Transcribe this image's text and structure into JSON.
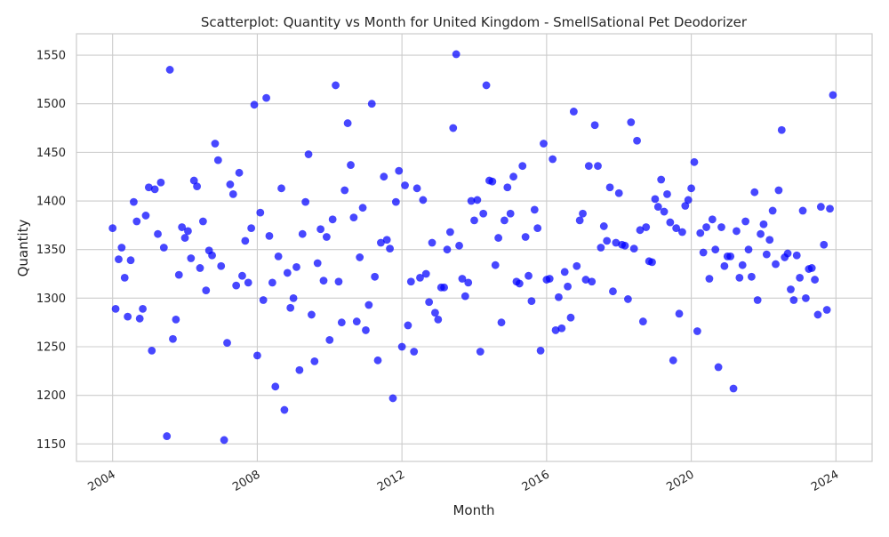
{
  "chart_data": {
    "type": "scatter",
    "title": "Scatterplot: Quantity vs Month for United Kingdom - SmellSational Pet Deodorizer",
    "xlabel": "Month",
    "ylabel": "Quantity",
    "x_tick_labels": [
      "2004",
      "2008",
      "2012",
      "2016",
      "2020",
      "2024"
    ],
    "y_tick_labels": [
      "1150",
      "1200",
      "1250",
      "1300",
      "1350",
      "1400",
      "1450",
      "1500",
      "1550"
    ],
    "xlim": [
      "2003-01",
      "2025-01"
    ],
    "ylim": [
      1132,
      1572
    ],
    "grid": true,
    "marker_color": "#0000ff",
    "series": [
      {
        "x": [
          "2004-01",
          "2004-02",
          "2004-03",
          "2004-04",
          "2004-05",
          "2004-06",
          "2004-07",
          "2004-08",
          "2004-09",
          "2004-10",
          "2004-11",
          "2004-12",
          "2005-01",
          "2005-02",
          "2005-03",
          "2005-04",
          "2005-05",
          "2005-06",
          "2005-07",
          "2005-08",
          "2005-09",
          "2005-10",
          "2005-11",
          "2005-12",
          "2006-01",
          "2006-02",
          "2006-03",
          "2006-04",
          "2006-05",
          "2006-06",
          "2006-07",
          "2006-08",
          "2006-09",
          "2006-10",
          "2006-11",
          "2006-12",
          "2007-01",
          "2007-02",
          "2007-03",
          "2007-04",
          "2007-05",
          "2007-06",
          "2007-07",
          "2007-08",
          "2007-09",
          "2007-10",
          "2007-11",
          "2007-12",
          "2008-01",
          "2008-02",
          "2008-03",
          "2008-04",
          "2008-05",
          "2008-06",
          "2008-07",
          "2008-08",
          "2008-09",
          "2008-10",
          "2008-11",
          "2008-12",
          "2009-01",
          "2009-02",
          "2009-03",
          "2009-04",
          "2009-05",
          "2009-06",
          "2009-07",
          "2009-08",
          "2009-09",
          "2009-10",
          "2009-11",
          "2009-12",
          "2010-01",
          "2010-02",
          "2010-03",
          "2010-04",
          "2010-05",
          "2010-06",
          "2010-07",
          "2010-08",
          "2010-09",
          "2010-10",
          "2010-11",
          "2010-12",
          "2011-01",
          "2011-02",
          "2011-03",
          "2011-04",
          "2011-05",
          "2011-06",
          "2011-07",
          "2011-08",
          "2011-09",
          "2011-10",
          "2011-11",
          "2011-12",
          "2012-01",
          "2012-02",
          "2012-03",
          "2012-04",
          "2012-05",
          "2012-06",
          "2012-07",
          "2012-08",
          "2012-09",
          "2012-10",
          "2012-11",
          "2012-12",
          "2013-01",
          "2013-02",
          "2013-03",
          "2013-04",
          "2013-05",
          "2013-06",
          "2013-07",
          "2013-08",
          "2013-09",
          "2013-10",
          "2013-11",
          "2013-12",
          "2014-01",
          "2014-02",
          "2014-03",
          "2014-04",
          "2014-05",
          "2014-06",
          "2014-07",
          "2014-08",
          "2014-09",
          "2014-10",
          "2014-11",
          "2014-12",
          "2015-01",
          "2015-02",
          "2015-03",
          "2015-04",
          "2015-05",
          "2015-06",
          "2015-07",
          "2015-08",
          "2015-09",
          "2015-10",
          "2015-11",
          "2015-12",
          "2016-01",
          "2016-02",
          "2016-03",
          "2016-04",
          "2016-05",
          "2016-06",
          "2016-07",
          "2016-08",
          "2016-09",
          "2016-10",
          "2016-11",
          "2016-12",
          "2017-01",
          "2017-02",
          "2017-03",
          "2017-04",
          "2017-05",
          "2017-06",
          "2017-07",
          "2017-08",
          "2017-09",
          "2017-10",
          "2017-11",
          "2017-12",
          "2018-01",
          "2018-02",
          "2018-03",
          "2018-04",
          "2018-05",
          "2018-06",
          "2018-07",
          "2018-08",
          "2018-09",
          "2018-10",
          "2018-11",
          "2018-12",
          "2019-01",
          "2019-02",
          "2019-03",
          "2019-04",
          "2019-05",
          "2019-06",
          "2019-07",
          "2019-08",
          "2019-09",
          "2019-10",
          "2019-11",
          "2019-12",
          "2020-01",
          "2020-02",
          "2020-03",
          "2020-04",
          "2020-05",
          "2020-06",
          "2020-07",
          "2020-08",
          "2020-09",
          "2020-10",
          "2020-11",
          "2020-12",
          "2021-01",
          "2021-02",
          "2021-03",
          "2021-04",
          "2021-05",
          "2021-06",
          "2021-07",
          "2021-08",
          "2021-09",
          "2021-10",
          "2021-11",
          "2021-12",
          "2022-01",
          "2022-02",
          "2022-03",
          "2022-04",
          "2022-05",
          "2022-06",
          "2022-07",
          "2022-08",
          "2022-09",
          "2022-10",
          "2022-11",
          "2022-12",
          "2023-01",
          "2023-02",
          "2023-03",
          "2023-04",
          "2023-05",
          "2023-06",
          "2023-07",
          "2023-08",
          "2023-09",
          "2023-10",
          "2023-11",
          "2023-12"
        ],
        "y": [
          1372,
          1289,
          1340,
          1352,
          1321,
          1281,
          1339,
          1399,
          1379,
          1279,
          1289,
          1385,
          1414,
          1246,
          1412,
          1366,
          1419,
          1352,
          1158,
          1535,
          1258,
          1278,
          1324,
          1373,
          1362,
          1369,
          1341,
          1421,
          1415,
          1331,
          1379,
          1308,
          1349,
          1344,
          1459,
          1442,
          1333,
          1154,
          1254,
          1417,
          1407,
          1313,
          1429,
          1323,
          1359,
          1316,
          1372,
          1499,
          1241,
          1388,
          1298,
          1506,
          1364,
          1316,
          1209,
          1343,
          1413,
          1185,
          1326,
          1290,
          1300,
          1332,
          1226,
          1366,
          1399,
          1448,
          1283,
          1235,
          1336,
          1371,
          1318,
          1363,
          1257,
          1381,
          1519,
          1317,
          1275,
          1411,
          1480,
          1437,
          1383,
          1276,
          1342,
          1393,
          1267,
          1293,
          1500,
          1322,
          1236,
          1357,
          1425,
          1360,
          1351,
          1197,
          1399,
          1431,
          1250,
          1416,
          1272,
          1317,
          1245,
          1413,
          1321,
          1401,
          1325,
          1296,
          1357,
          1285,
          1278,
          1311,
          1311,
          1350,
          1368,
          1475,
          1551,
          1354,
          1320,
          1302,
          1316,
          1400,
          1380,
          1401,
          1245,
          1387,
          1519,
          1421,
          1420,
          1334,
          1362,
          1275,
          1380,
          1414,
          1387,
          1425,
          1317,
          1315,
          1436,
          1363,
          1323,
          1297,
          1391,
          1372,
          1246,
          1459,
          1319,
          1320,
          1443,
          1267,
          1301,
          1269,
          1327,
          1312,
          1280,
          1492,
          1333,
          1380,
          1387,
          1319,
          1436,
          1317,
          1478,
          1436,
          1352,
          1374,
          1359,
          1414,
          1307,
          1357,
          1408,
          1355,
          1354,
          1299,
          1481,
          1351,
          1462,
          1370,
          1276,
          1373,
          1338,
          1337,
          1402,
          1394,
          1422,
          1389,
          1407,
          1378,
          1236,
          1372,
          1284,
          1368,
          1395,
          1401,
          1413,
          1440,
          1266,
          1367,
          1347,
          1373,
          1320,
          1381,
          1350,
          1229,
          1373,
          1333,
          1343,
          1343,
          1207,
          1369,
          1321,
          1334,
          1379,
          1350,
          1322,
          1409,
          1298,
          1366,
          1376,
          1345,
          1360,
          1390,
          1335,
          1411,
          1473,
          1342,
          1346,
          1309,
          1298,
          1344,
          1321,
          1390,
          1300,
          1330,
          1331,
          1319,
          1283,
          1394,
          1355,
          1288,
          1392,
          1509
        ]
      }
    ]
  }
}
